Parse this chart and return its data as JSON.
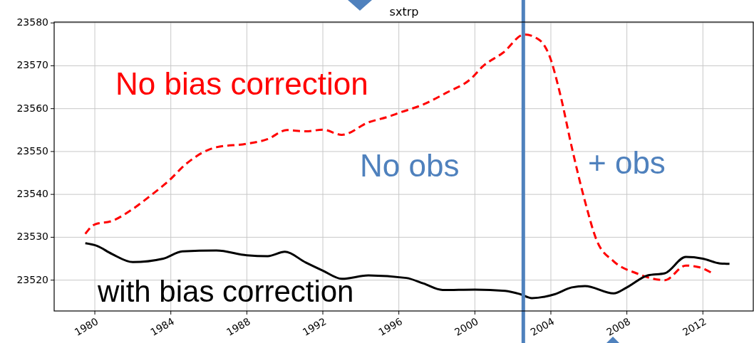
{
  "chart_data": {
    "type": "line",
    "title": "sxtrp",
    "xlim": [
      1977.86,
      2014.69
    ],
    "xticks": [
      1980,
      1984,
      1988,
      1992,
      1996,
      2000,
      2004,
      2008,
      2012
    ],
    "ylim": [
      23512.8,
      23580.2
    ],
    "yticks": [
      23520,
      23530,
      23540,
      23550,
      23560,
      23570,
      23580
    ],
    "grid": true,
    "line_style": "solid",
    "marker": "none",
    "series": [
      {
        "color": "#ff0000",
        "line_style": "dashed",
        "x": [
          1979.5,
          1980.0,
          1980.9,
          1982.0,
          1982.9,
          1983.9,
          1984.8,
          1986.4,
          1988.0,
          1989.1,
          1990.1,
          1991.1,
          1992.0,
          1993.0,
          1994.4,
          1995.5,
          1996.0,
          1997.3,
          1998.5,
          1999.8,
          2000.4,
          2001.5,
          2002.6,
          2003.4,
          2003.9,
          2004.5,
          2005.1,
          2005.8,
          2006.4,
          2007.3,
          2008.5,
          2010.0,
          2011.1,
          2011.8,
          2012.5
        ],
        "values": [
          23530.8,
          23533.0,
          23533.8,
          23536.6,
          23539.6,
          23543.2,
          23547.1,
          23551.0,
          23551.8,
          23552.9,
          23555.0,
          23554.7,
          23555.1,
          23553.9,
          23556.8,
          23558.2,
          23559.0,
          23561.0,
          23563.7,
          23567.0,
          23569.8,
          23573.1,
          23577.3,
          23576.0,
          23572.6,
          23563.2,
          23551.0,
          23538.3,
          23529.4,
          23524.4,
          23521.6,
          23520.0,
          23523.4,
          23523.0,
          23521.6
        ]
      },
      {
        "color": "#000000",
        "x": [
          1979.5,
          1980.1,
          1980.9,
          1982.0,
          1983.6,
          1984.6,
          1986.4,
          1988.0,
          1989.1,
          1990.0,
          1991.1,
          1992.0,
          1993.0,
          1994.4,
          1996.4,
          1997.3,
          1998.3,
          2000.0,
          2001.6,
          2002.4,
          2003.0,
          2004.2,
          2005.1,
          2005.8,
          2007.3,
          2008.0,
          2009.1,
          2010.0,
          2011.1,
          2012.0,
          2012.9,
          2013.4
        ],
        "values": [
          23528.6,
          23528.0,
          23526.1,
          23524.2,
          23525.0,
          23526.7,
          23526.9,
          23525.8,
          23525.6,
          23526.6,
          23524.1,
          23522.2,
          23520.3,
          23521.1,
          23520.5,
          23519.2,
          23517.7,
          23517.8,
          23517.5,
          23516.7,
          23515.8,
          23516.7,
          23518.3,
          23518.6,
          23516.9,
          23518.3,
          23521.1,
          23521.6,
          23525.4,
          23525.0,
          23523.9,
          23523.8
        ]
      }
    ],
    "ref_lines": [
      {
        "axis": "x",
        "value": 2002.55,
        "color": "#4f81bd"
      }
    ],
    "annotations": [
      "No bias correction",
      "No obs",
      "+ obs",
      "with bias correction"
    ]
  }
}
